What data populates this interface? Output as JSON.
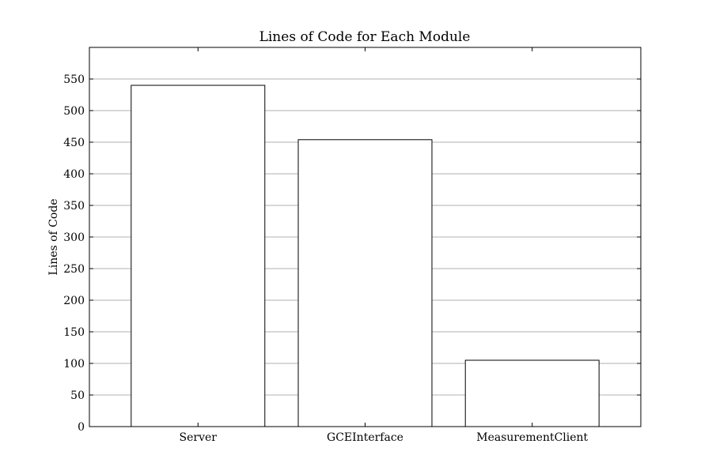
{
  "chart_data": {
    "type": "bar",
    "title": "Lines of Code for Each Module",
    "xlabel": "",
    "ylabel": "Lines of Code",
    "categories": [
      "Server",
      "GCEInterface",
      "MeasurementClient"
    ],
    "values": [
      540,
      454,
      105
    ],
    "ylim": [
      0,
      600
    ],
    "yticks": [
      0,
      50,
      100,
      150,
      200,
      250,
      300,
      350,
      400,
      450,
      500,
      550
    ],
    "ytick_labels": [
      "0",
      "50",
      "100",
      "150",
      "200",
      "250",
      "300",
      "350",
      "400",
      "450",
      "500",
      "550"
    ],
    "grid": "horizontal",
    "legend": "none",
    "colors": {
      "bar_fill": "#ffffff",
      "bar_stroke": "#000000",
      "grid": "#b0b0b0",
      "axes": "#000000",
      "background": "#ffffff"
    }
  }
}
